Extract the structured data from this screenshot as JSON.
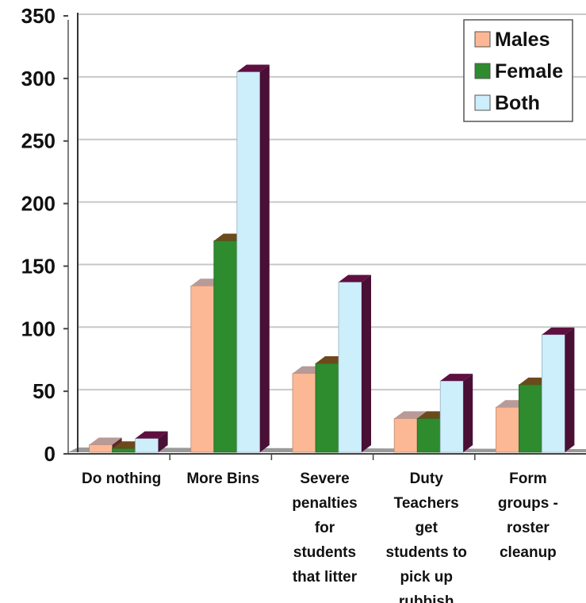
{
  "chart_data": {
    "type": "bar",
    "title": "",
    "xlabel": "",
    "ylabel": "",
    "ylim": [
      0,
      350
    ],
    "yticks": [
      0,
      50,
      100,
      150,
      200,
      250,
      300,
      350
    ],
    "grid": true,
    "legend_position": "top-right",
    "style": "3d-clustered-columns",
    "categories": [
      [
        "Do nothing"
      ],
      [
        "More Bins"
      ],
      [
        "Severe",
        "penalties",
        "for",
        "students",
        "that litter"
      ],
      [
        "Duty",
        "Teachers",
        "get",
        "students to",
        "pick up",
        "rubbish"
      ],
      [
        "Form",
        "groups -",
        "roster",
        "cleanup"
      ]
    ],
    "series": [
      {
        "name": "Males",
        "color": "#fcb895",
        "values": [
          6,
          133,
          63,
          27,
          36
        ]
      },
      {
        "name": "Female",
        "color": "#2e8b2e",
        "values": [
          3,
          169,
          71,
          27,
          54
        ]
      },
      {
        "name": "Both",
        "color": "#cdeefb",
        "values": [
          11,
          304,
          136,
          57,
          94
        ]
      }
    ]
  }
}
